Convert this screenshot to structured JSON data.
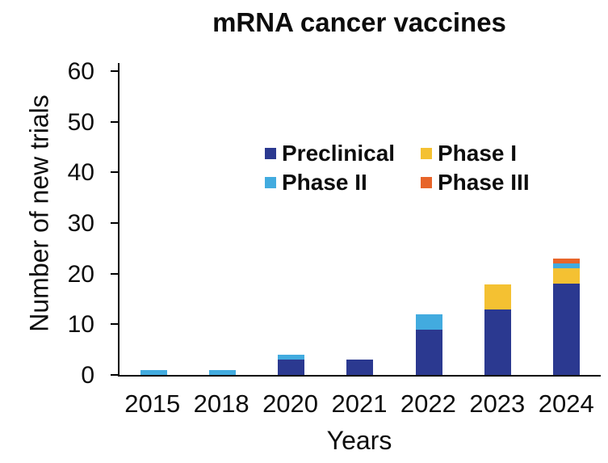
{
  "title": "mRNA cancer vaccines",
  "chart_data": {
    "type": "bar",
    "stacked": true,
    "title": "mRNA cancer vaccines",
    "xlabel": "Years",
    "ylabel": "Number of new trials",
    "categories": [
      "2015",
      "2018",
      "2020",
      "2021",
      "2022",
      "2023",
      "2024"
    ],
    "series": [
      {
        "name": "Preclinical",
        "color": "#2B3990",
        "values": [
          0,
          0,
          3,
          3,
          9,
          13,
          18
        ]
      },
      {
        "name": "Phase I",
        "color": "#F4C132",
        "values": [
          0,
          0,
          0,
          0,
          0,
          5,
          3
        ]
      },
      {
        "name": "Phase II",
        "color": "#42ABDF",
        "values": [
          1,
          1,
          1,
          0,
          3,
          0,
          1
        ]
      },
      {
        "name": "Phase III",
        "color": "#E7652A",
        "values": [
          0,
          0,
          0,
          0,
          0,
          0,
          1
        ]
      }
    ],
    "totals": [
      1,
      1,
      4,
      3,
      12,
      18,
      23
    ],
    "stack_order_bottom_to_top": [
      "Preclinical",
      "Phase I",
      "Phase II",
      "Phase III"
    ],
    "ylim": [
      0,
      60
    ],
    "yticks": [
      0,
      10,
      20,
      30,
      40,
      50,
      60
    ],
    "grid": false,
    "legend_position": "top-left-inside",
    "legend_order": [
      [
        "Preclinical",
        "Phase I"
      ],
      [
        "Phase II",
        "Phase III"
      ]
    ],
    "axis_color": "#000000",
    "background_color": "#ffffff"
  }
}
